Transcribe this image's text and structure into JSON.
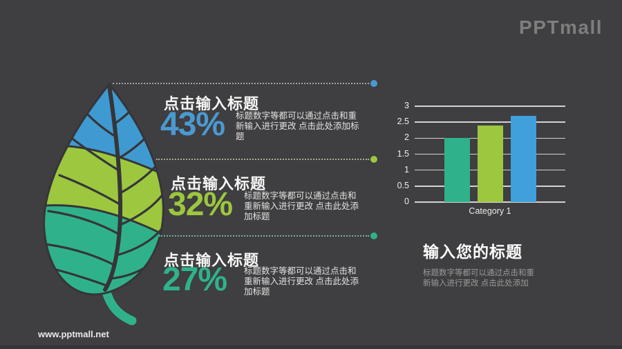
{
  "page": {
    "logo": "PPTmall",
    "footer_url": "www.pptmall.net",
    "background_color": "#3f3e40"
  },
  "items": [
    {
      "title": "点击输入标题",
      "percent": "43%",
      "desc": "标题数字等都可以通过点击和重新输入进行更改  点击此处添加标题",
      "accent": "#4a9ad2",
      "line_color": "#a6a6a6"
    },
    {
      "title": "点击输入标题",
      "percent": "32%",
      "desc": "标题数字等都可以通过点击和重新输入进行更改  点击此处添加标题",
      "accent": "#9cc73f",
      "line_color": "#a9ad9e"
    },
    {
      "title": "点击输入标题",
      "percent": "27%",
      "desc": "标题数字等都可以通过点击和重新输入进行更改  点击此处添加标题",
      "accent": "#2fb28c",
      "line_color": "#72b3a0"
    }
  ],
  "summary": {
    "title": "输入您的标题",
    "desc": "标题数字等都可以通过点击和重新输入进行更改 点击此处添加"
  },
  "chart_data": {
    "type": "bar",
    "title": "",
    "xlabel": "",
    "ylabel": "",
    "categories": [
      "Category 1"
    ],
    "values": [
      2.0,
      2.4,
      2.7
    ],
    "bar_colors": [
      "#2fb28c",
      "#9cc73f",
      "#3fa0dc"
    ],
    "ylim": [
      0,
      3
    ],
    "yticks": [
      "0",
      "0.5",
      "1",
      "1.5",
      "2",
      "2.5",
      "3"
    ],
    "grid": true,
    "legend": false
  },
  "leaf": {
    "band_top_color": "#3f9ad2",
    "band_middle_color": "#9cc73f",
    "band_bottom_color": "#2fb28c",
    "vein_color": "#363538",
    "stem_color": "#2fb28c"
  }
}
